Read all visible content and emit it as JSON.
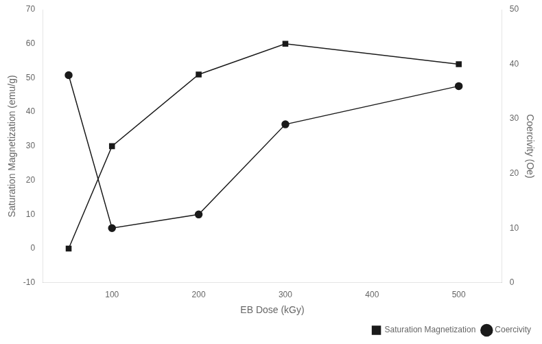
{
  "chart_data": {
    "type": "line",
    "x": [
      50,
      100,
      200,
      300,
      500
    ],
    "series": [
      {
        "name": "Saturation Magnetization",
        "color": "#1a1a1a",
        "marker": "square",
        "values": [
          0,
          30,
          51,
          60,
          54
        ]
      },
      {
        "name": "Coercivity",
        "color": "#1a1a1a",
        "marker": "circle",
        "axis": "y2",
        "values": [
          38,
          10,
          12.5,
          29,
          36
        ]
      }
    ],
    "xlabel": "EB Dose (kGy)",
    "ylabel": "Saturation Magnetization (emu/g)",
    "y2label": "Coercivity (Oe)",
    "xlim": [
      20,
      550
    ],
    "xticks": [
      100,
      200,
      300,
      400,
      500
    ],
    "ylim": [
      -10,
      70
    ],
    "yticks": [
      -10,
      0,
      10,
      20,
      30,
      40,
      50,
      60,
      70
    ],
    "y2lim": [
      0,
      50
    ],
    "y2ticks": [
      0,
      10,
      20,
      30,
      40,
      50
    ],
    "grid": false,
    "legend": "lower right"
  }
}
